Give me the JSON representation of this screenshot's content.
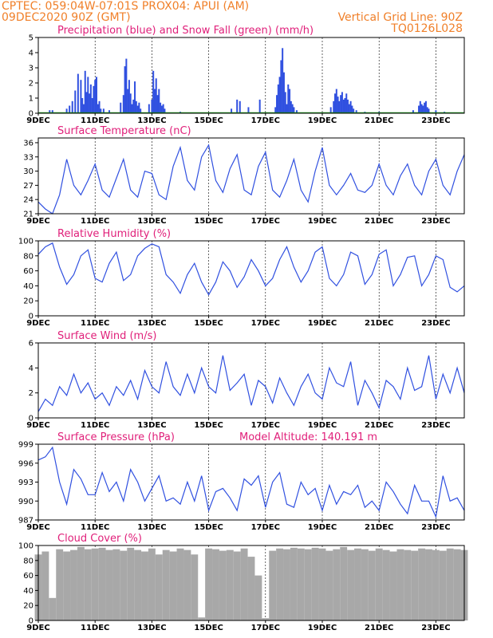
{
  "header": {
    "left_line1": "CPTEC:   059:04W-07:01S   PROX04: APUI (AM)",
    "left_line2": "09DEC2020 90Z (GMT)",
    "right_line1": "Vertical Grid Line: 90Z",
    "right_line2": "TQ0126L028"
  },
  "colors": {
    "header": "#f0802a",
    "title": "#e0207a",
    "line": "#3050e0",
    "snow": "#20a020",
    "cloud": "#a8a8a8"
  },
  "x_axis": {
    "tick_labels": [
      "9DEC",
      "11DEC",
      "13DEC",
      "15DEC",
      "17DEC",
      "19DEC",
      "21DEC",
      "23DEC"
    ],
    "tick_days": [
      0,
      2,
      4,
      6,
      8,
      10,
      12,
      14
    ],
    "range_days": [
      0,
      15
    ]
  },
  "chart_data": [
    {
      "type": "bar",
      "title": "Precipitation (blue) and Snow Fall (green) (mm/h)",
      "ylim": [
        0,
        5
      ],
      "yticks": [
        0,
        1,
        2,
        3,
        4,
        5
      ],
      "series": [
        {
          "name": "Precipitation",
          "x": [
            0.4,
            0.5,
            1.0,
            1.1,
            1.2,
            1.3,
            1.4,
            1.5,
            1.55,
            1.6,
            1.65,
            1.7,
            1.75,
            1.8,
            1.85,
            1.9,
            1.95,
            2.0,
            2.05,
            2.1,
            2.15,
            2.2,
            2.3,
            2.5,
            2.9,
            3.0,
            3.05,
            3.1,
            3.15,
            3.2,
            3.25,
            3.3,
            3.35,
            3.4,
            3.45,
            3.5,
            3.55,
            3.6,
            3.9,
            4.0,
            4.05,
            4.1,
            4.15,
            4.2,
            4.25,
            4.3,
            4.35,
            4.4,
            4.45,
            5.0,
            6.8,
            7.0,
            7.1,
            7.4,
            7.8,
            8.35,
            8.4,
            8.45,
            8.5,
            8.55,
            8.6,
            8.65,
            8.7,
            8.75,
            8.8,
            8.85,
            8.9,
            8.95,
            9.0,
            9.1,
            10.3,
            10.4,
            10.45,
            10.5,
            10.55,
            10.6,
            10.65,
            10.7,
            10.75,
            10.8,
            10.85,
            10.9,
            10.95,
            11.0,
            11.05,
            11.1,
            11.2,
            11.5,
            12.0,
            13.2,
            13.4,
            13.45,
            13.5,
            13.55,
            13.6,
            13.65,
            13.7,
            13.75,
            14.0,
            14.3
          ],
          "values": [
            0.2,
            0.2,
            0.3,
            0.5,
            0.8,
            1.5,
            2.6,
            2.2,
            1.0,
            0.6,
            2.8,
            1.4,
            2.4,
            1.3,
            1.9,
            1.0,
            1.8,
            2.2,
            2.4,
            0.6,
            0.8,
            0.3,
            0.3,
            0.2,
            0.7,
            1.2,
            3.1,
            3.6,
            1.6,
            2.2,
            1.3,
            0.6,
            0.9,
            2.1,
            0.8,
            0.5,
            0.7,
            0.3,
            0.6,
            0.9,
            2.8,
            1.6,
            2.3,
            1.2,
            1.6,
            0.7,
            0.5,
            0.6,
            0.3,
            0.1,
            0.3,
            0.9,
            0.8,
            0.4,
            0.9,
            0.4,
            1.2,
            1.9,
            2.4,
            3.5,
            4.3,
            2.7,
            1.4,
            0.6,
            1.9,
            1.6,
            0.8,
            0.6,
            0.4,
            0.2,
            0.4,
            0.8,
            1.3,
            1.6,
            1.1,
            0.8,
            1.2,
            1.4,
            0.9,
            1.0,
            1.3,
            0.9,
            0.6,
            0.8,
            0.5,
            0.3,
            0.2,
            0.1,
            0.1,
            0.2,
            0.5,
            0.8,
            0.6,
            0.5,
            0.7,
            0.8,
            0.4,
            0.3,
            0.2,
            0.1
          ]
        },
        {
          "name": "Snow Fall",
          "x": [
            0,
            15
          ],
          "values": [
            0,
            0
          ]
        }
      ]
    },
    {
      "type": "line",
      "title": "Surface Temperature (nC)",
      "ylim": [
        21,
        37
      ],
      "yticks": [
        21,
        24,
        27,
        30,
        33,
        36
      ],
      "series": [
        {
          "name": "Surface Temperature",
          "x": [
            0,
            0.25,
            0.5,
            0.75,
            1.0,
            1.25,
            1.5,
            1.75,
            2.0,
            2.25,
            2.5,
            2.75,
            3.0,
            3.25,
            3.5,
            3.75,
            4.0,
            4.25,
            4.5,
            4.75,
            5.0,
            5.25,
            5.5,
            5.75,
            6.0,
            6.25,
            6.5,
            6.75,
            7.0,
            7.25,
            7.5,
            7.75,
            8.0,
            8.25,
            8.5,
            8.75,
            9.0,
            9.25,
            9.5,
            9.75,
            10.0,
            10.25,
            10.5,
            10.75,
            11.0,
            11.25,
            11.5,
            11.75,
            12.0,
            12.25,
            12.5,
            12.75,
            13.0,
            13.25,
            13.5,
            13.75,
            14.0,
            14.25,
            14.5,
            14.75,
            15.0
          ],
          "values": [
            23.5,
            22,
            21,
            25,
            32.5,
            27,
            25,
            28,
            31.5,
            26,
            24.5,
            28.5,
            32.5,
            26,
            24.5,
            30,
            29.5,
            25,
            24,
            31,
            35,
            28,
            26,
            33,
            35.5,
            28,
            25.5,
            30.5,
            33.5,
            26,
            25,
            31,
            34,
            26,
            24.5,
            28,
            32.5,
            26,
            23.5,
            30,
            35,
            27,
            25,
            27,
            29.5,
            26,
            25.5,
            27,
            31.5,
            27,
            25,
            29,
            31.5,
            27,
            25,
            30,
            32.5,
            27,
            25,
            30,
            33.5
          ]
        }
      ]
    },
    {
      "type": "line",
      "title": "Relative Humidity (%)",
      "ylim": [
        0,
        100
      ],
      "yticks": [
        0,
        20,
        40,
        60,
        80,
        100
      ],
      "series": [
        {
          "name": "Relative Humidity",
          "x": [
            0,
            0.25,
            0.5,
            0.75,
            1.0,
            1.25,
            1.5,
            1.75,
            2.0,
            2.25,
            2.5,
            2.75,
            3.0,
            3.25,
            3.5,
            3.75,
            4.0,
            4.25,
            4.5,
            4.75,
            5.0,
            5.25,
            5.5,
            5.75,
            6.0,
            6.25,
            6.5,
            6.75,
            7.0,
            7.25,
            7.5,
            7.75,
            8.0,
            8.25,
            8.5,
            8.75,
            9.0,
            9.25,
            9.5,
            9.75,
            10.0,
            10.25,
            10.5,
            10.75,
            11.0,
            11.25,
            11.5,
            11.75,
            12.0,
            12.25,
            12.5,
            12.75,
            13.0,
            13.25,
            13.5,
            13.75,
            14.0,
            14.25,
            14.5,
            14.75,
            15.0
          ],
          "values": [
            82,
            92,
            97,
            65,
            42,
            55,
            80,
            88,
            50,
            45,
            70,
            85,
            47,
            55,
            80,
            90,
            96,
            92,
            55,
            45,
            30,
            55,
            70,
            45,
            28,
            45,
            72,
            60,
            38,
            52,
            75,
            60,
            40,
            50,
            75,
            92,
            65,
            45,
            60,
            85,
            92,
            50,
            40,
            55,
            85,
            80,
            42,
            55,
            82,
            88,
            40,
            55,
            78,
            80,
            40,
            55,
            80,
            75,
            38,
            32,
            40
          ]
        }
      ]
    },
    {
      "type": "line",
      "title": "Surface Wind (m/s)",
      "ylim": [
        0,
        6
      ],
      "yticks": [
        0,
        2,
        4,
        6
      ],
      "series": [
        {
          "name": "Surface Wind",
          "x": [
            0,
            0.25,
            0.5,
            0.75,
            1.0,
            1.25,
            1.5,
            1.75,
            2.0,
            2.25,
            2.5,
            2.75,
            3.0,
            3.25,
            3.5,
            3.75,
            4.0,
            4.25,
            4.5,
            4.75,
            5.0,
            5.25,
            5.5,
            5.75,
            6.0,
            6.25,
            6.5,
            6.75,
            7.0,
            7.25,
            7.5,
            7.75,
            8.0,
            8.25,
            8.5,
            8.75,
            9.0,
            9.25,
            9.5,
            9.75,
            10.0,
            10.25,
            10.5,
            10.75,
            11.0,
            11.25,
            11.5,
            11.75,
            12.0,
            12.25,
            12.5,
            12.75,
            13.0,
            13.25,
            13.5,
            13.75,
            14.0,
            14.25,
            14.5,
            14.75,
            15.0
          ],
          "values": [
            0.5,
            1.5,
            1.0,
            2.5,
            1.8,
            3.5,
            2.0,
            2.8,
            1.5,
            2.0,
            1.0,
            2.5,
            1.8,
            3.0,
            1.5,
            3.8,
            2.5,
            2.0,
            4.5,
            2.5,
            1.8,
            3.5,
            2.0,
            4.0,
            2.5,
            2.0,
            5.0,
            2.2,
            2.8,
            3.5,
            1.0,
            3.0,
            2.5,
            1.2,
            3.2,
            2.0,
            1.0,
            2.5,
            3.5,
            2.0,
            1.5,
            4.0,
            2.8,
            2.5,
            4.5,
            1.0,
            3.0,
            2.0,
            0.8,
            3.0,
            2.5,
            1.5,
            4.0,
            2.2,
            2.5,
            5.0,
            1.5,
            3.5,
            2.0,
            4.0,
            2.0
          ]
        }
      ]
    },
    {
      "type": "line",
      "title": "Surface Pressure (hPa)",
      "annotation": "Model Altitude: 140.191 m",
      "ylim": [
        987,
        999
      ],
      "yticks": [
        987,
        990,
        993,
        996,
        999
      ],
      "series": [
        {
          "name": "Surface Pressure",
          "x": [
            0,
            0.25,
            0.5,
            0.75,
            1.0,
            1.25,
            1.5,
            1.75,
            2.0,
            2.25,
            2.5,
            2.75,
            3.0,
            3.25,
            3.5,
            3.75,
            4.0,
            4.25,
            4.5,
            4.75,
            5.0,
            5.25,
            5.5,
            5.75,
            6.0,
            6.25,
            6.5,
            6.75,
            7.0,
            7.25,
            7.5,
            7.75,
            8.0,
            8.25,
            8.5,
            8.75,
            9.0,
            9.25,
            9.5,
            9.75,
            10.0,
            10.25,
            10.5,
            10.75,
            11.0,
            11.25,
            11.5,
            11.75,
            12.0,
            12.25,
            12.5,
            12.75,
            13.0,
            13.25,
            13.5,
            13.75,
            14.0,
            14.25,
            14.5,
            14.75,
            15.0
          ],
          "values": [
            996.5,
            997,
            998.5,
            993,
            989.5,
            995,
            993.5,
            991,
            991,
            994.5,
            991.5,
            993,
            990,
            995,
            993,
            990,
            992,
            994,
            990,
            990.5,
            989.5,
            993,
            990,
            994,
            988.5,
            991.5,
            992,
            990.5,
            988.5,
            993.5,
            992.5,
            994,
            989,
            993,
            994.5,
            989.5,
            989,
            993,
            991,
            992,
            988.5,
            992.5,
            989.5,
            991.5,
            991,
            992.5,
            989,
            990,
            988.5,
            993,
            991.5,
            989.5,
            988,
            992.5,
            990,
            990,
            987.5,
            994,
            990,
            990.5,
            988.5
          ]
        }
      ]
    },
    {
      "type": "bar",
      "title": "Cloud Cover (%)",
      "ylim": [
        0,
        100
      ],
      "yticks": [
        0,
        20,
        40,
        60,
        80,
        100
      ],
      "series": [
        {
          "name": "Cloud Cover",
          "x": [
            0,
            0.25,
            0.5,
            0.75,
            1.0,
            1.25,
            1.5,
            1.75,
            2.0,
            2.25,
            2.5,
            2.75,
            3.0,
            3.25,
            3.5,
            3.75,
            4.0,
            4.25,
            4.5,
            4.75,
            5.0,
            5.25,
            5.5,
            5.75,
            6.0,
            6.25,
            6.5,
            6.75,
            7.0,
            7.25,
            7.5,
            7.75,
            8.0,
            8.25,
            8.5,
            8.75,
            9.0,
            9.25,
            9.5,
            9.75,
            10.0,
            10.25,
            10.5,
            10.75,
            11.0,
            11.25,
            11.5,
            11.75,
            12.0,
            12.25,
            12.5,
            12.75,
            13.0,
            13.25,
            13.5,
            13.75,
            14.0,
            14.25,
            14.5,
            14.75,
            15.0
          ],
          "values": [
            88,
            92,
            30,
            95,
            92,
            94,
            98,
            95,
            96,
            97,
            94,
            95,
            93,
            97,
            94,
            92,
            96,
            88,
            94,
            92,
            96,
            94,
            88,
            4,
            96,
            95,
            93,
            94,
            92,
            96,
            85,
            60,
            3,
            93,
            96,
            95,
            97,
            96,
            95,
            97,
            96,
            93,
            95,
            98,
            94,
            96,
            95,
            93,
            96,
            94,
            92,
            95,
            94,
            93,
            96,
            95,
            94,
            93,
            96,
            95,
            94
          ]
        }
      ]
    }
  ]
}
